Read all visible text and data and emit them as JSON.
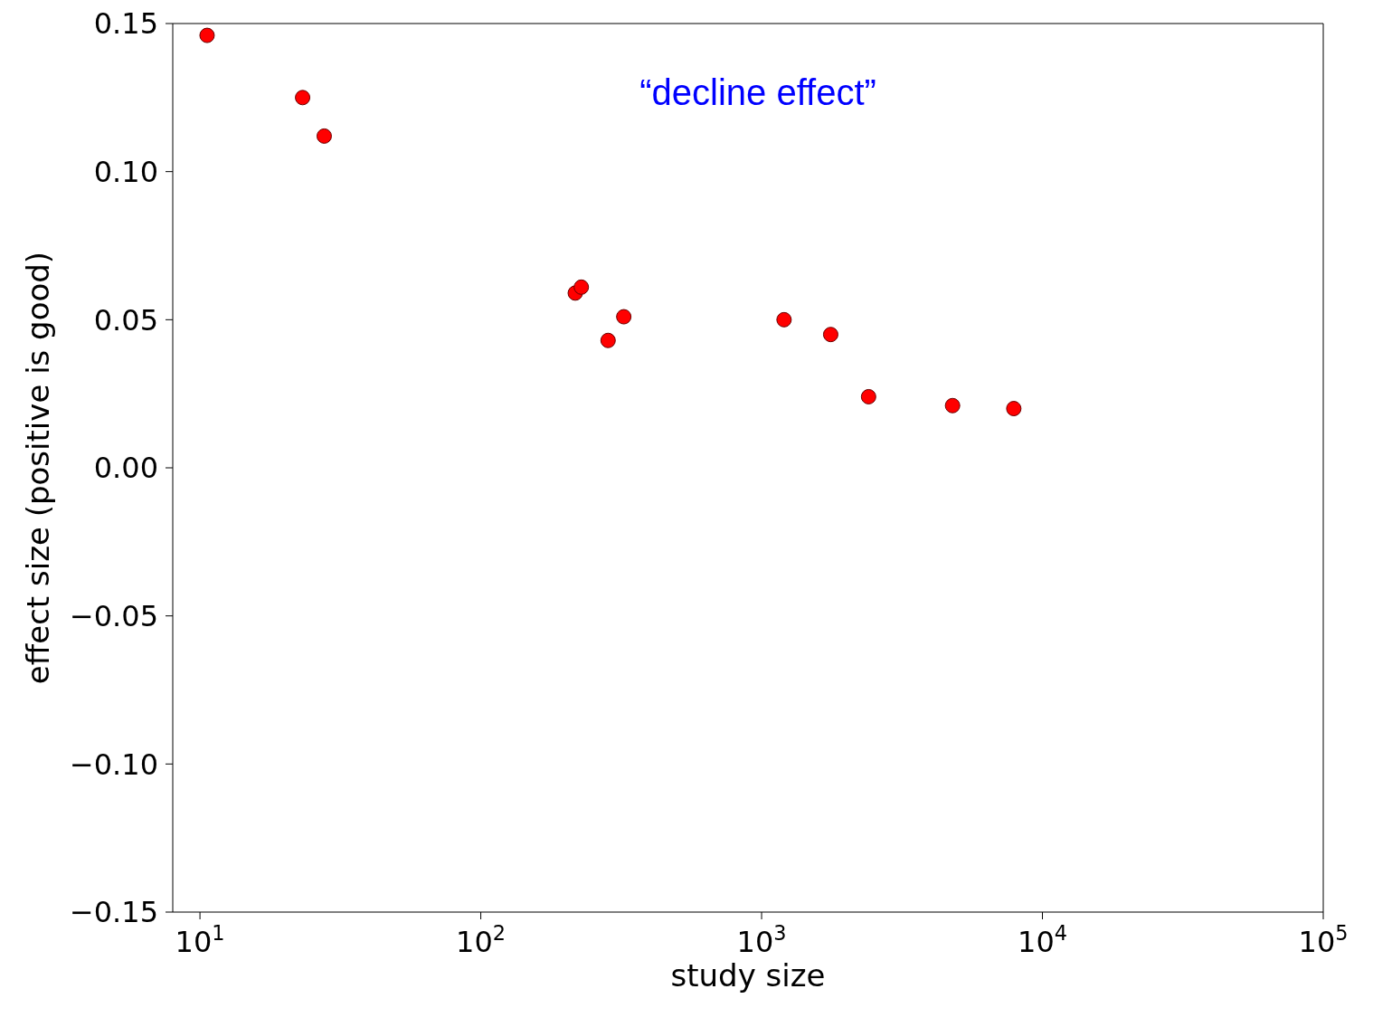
{
  "chart_data": {
    "type": "scatter",
    "xlabel": "study size",
    "ylabel": "effect size (positive is good)",
    "annotations": [
      "“decline effect”"
    ],
    "x": [
      10.6,
      23.2,
      27.7,
      217,
      228,
      284,
      323,
      1202,
      1762,
      2404,
      4786,
      7907
    ],
    "values": [
      0.146,
      0.125,
      0.112,
      0.059,
      0.061,
      0.043,
      0.051,
      0.05,
      0.045,
      0.024,
      0.021,
      0.02
    ],
    "color": "#ff0000",
    "marker": "circle",
    "log": "x",
    "grid": false,
    "legend": false,
    "xlim": [
      8,
      100000
    ],
    "xticks": [
      {
        "value": 10,
        "label": "10$^{1}$"
      },
      {
        "value": 100,
        "label": "10$^{2}$"
      },
      {
        "value": 1000,
        "label": "10$^{3}$"
      },
      {
        "value": 10000,
        "label": "10$^{4}$"
      },
      {
        "value": 100000,
        "label": "10$^{5}$"
      }
    ],
    "ylim": [
      -0.15,
      0.15
    ],
    "yticks": [
      {
        "value": -0.15,
        "label": "−0.15"
      },
      {
        "value": -0.1,
        "label": "−0.10"
      },
      {
        "value": -0.05,
        "label": "−0.05"
      },
      {
        "value": 0,
        "label": "0.00"
      },
      {
        "value": 0.05,
        "label": "0.05"
      },
      {
        "value": 0.1,
        "label": "0.10"
      },
      {
        "value": 0.15,
        "label": "0.15"
      }
    ]
  }
}
